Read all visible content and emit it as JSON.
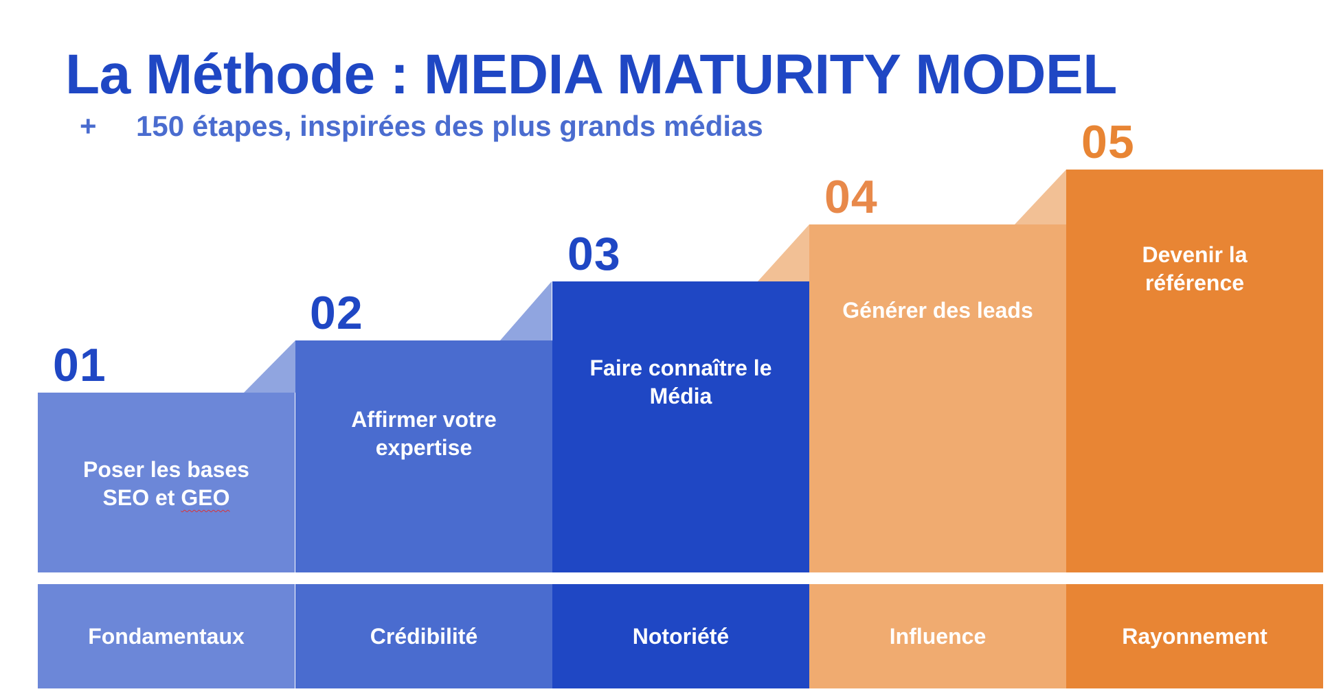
{
  "header": {
    "title": "La Méthode : MEDIA MATURITY MODEL",
    "subtitle_bullet": "+",
    "subtitle": "150 étapes, inspirées des plus grands médias"
  },
  "steps": [
    {
      "number": "01",
      "text_line1": "Poser les bases",
      "text_line2a": "SEO et ",
      "text_line2b": "GEO",
      "label": "Fondamentaux",
      "color": "#6C87D8"
    },
    {
      "number": "02",
      "text_line1": "Affirmer votre",
      "text_line2": "expertise",
      "label": "Crédibilité",
      "color": "#4A6CCF"
    },
    {
      "number": "03",
      "text_line1": "Faire connaître le",
      "text_line2": "Média",
      "label": "Notoriété",
      "color": "#1F47C4"
    },
    {
      "number": "04",
      "text_line1": "Générer des leads",
      "label": "Influence",
      "color": "#F0AB70"
    },
    {
      "number": "05",
      "text_line1": "Devenir la",
      "text_line2": "référence",
      "label": "Rayonnement",
      "color": "#E88534"
    }
  ],
  "colors": {
    "title": "#1F47C4",
    "subtitle": "#4A6CCF",
    "blue_triangle": "#90A5E0",
    "orange_triangle": "#F2C095",
    "number_blue": "#1F47C4",
    "number_orange": "#E8894A"
  }
}
